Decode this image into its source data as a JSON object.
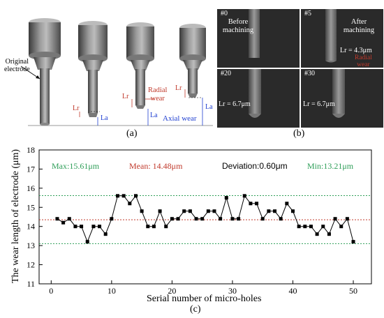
{
  "colors": {
    "green": "#2e9e58",
    "red": "#c0392b",
    "blue": "#1f3fd1",
    "black": "#000000",
    "sem_bg": "#2a2a2a"
  },
  "panel_a": {
    "caption": "(a)",
    "labels": {
      "original": "Original",
      "electrode": "electrode",
      "lr": "Lr",
      "la": "La",
      "radial": "Radial",
      "wear": "wear",
      "axial_wear": "Axial wear"
    }
  },
  "panel_b": {
    "caption": "(b)",
    "cells": [
      {
        "num": "#0",
        "line1": "Before",
        "line2": "machining",
        "lr": ""
      },
      {
        "num": "#5",
        "line1": "After",
        "line2": "machining",
        "lr": "Lr = 4.3μm",
        "radial": "Radial",
        "wear": "wear"
      },
      {
        "num": "#20",
        "lr": "Lr = 6.7μm"
      },
      {
        "num": "#30",
        "lr": "Lr = 6.7μm"
      }
    ]
  },
  "chart_data": {
    "type": "line",
    "caption": "(c)",
    "xlabel": "Serial number of micro-holes",
    "ylabel": "The wear length of electrode (μm)",
    "xlim": [
      -2,
      53
    ],
    "ylim": [
      11,
      18
    ],
    "xticks": [
      0,
      10,
      20,
      30,
      40,
      50
    ],
    "yticks": [
      11,
      12,
      13,
      14,
      15,
      16,
      17,
      18
    ],
    "stats": {
      "max": "Max:15.61μm",
      "mean": "Mean:  14.48μm",
      "deviation": "Deviation:0.60μm",
      "min": "Min:13.21μm"
    },
    "reference_lines": [
      {
        "value": 15.61,
        "color": "green"
      },
      {
        "value": 14.35,
        "color": "red"
      },
      {
        "value": 13.1,
        "color": "green"
      }
    ],
    "series": [
      {
        "x": [
          1,
          2,
          3,
          4,
          5,
          6,
          7,
          8,
          9,
          10,
          11,
          12,
          13,
          14,
          15,
          16,
          17,
          18,
          19,
          20,
          21,
          22,
          23,
          24,
          25,
          26,
          27,
          28,
          29,
          30,
          31,
          32,
          33,
          34,
          35,
          36,
          37,
          38,
          39,
          40,
          41,
          42,
          43,
          44,
          45,
          46,
          47,
          48,
          49,
          50
        ],
        "values": [
          14.4,
          14.2,
          14.4,
          14.0,
          14.0,
          13.2,
          14.0,
          14.0,
          13.6,
          14.4,
          15.6,
          15.6,
          15.2,
          15.6,
          14.8,
          14.0,
          14.0,
          14.8,
          14.0,
          14.4,
          14.4,
          14.8,
          14.8,
          14.4,
          14.4,
          14.8,
          14.8,
          14.4,
          15.5,
          14.4,
          14.4,
          15.6,
          15.2,
          15.2,
          14.4,
          14.8,
          14.8,
          14.4,
          15.2,
          14.8,
          14.0,
          14.0,
          14.0,
          13.6,
          14.0,
          13.6,
          14.4,
          14.0,
          14.4,
          13.2
        ]
      }
    ]
  }
}
